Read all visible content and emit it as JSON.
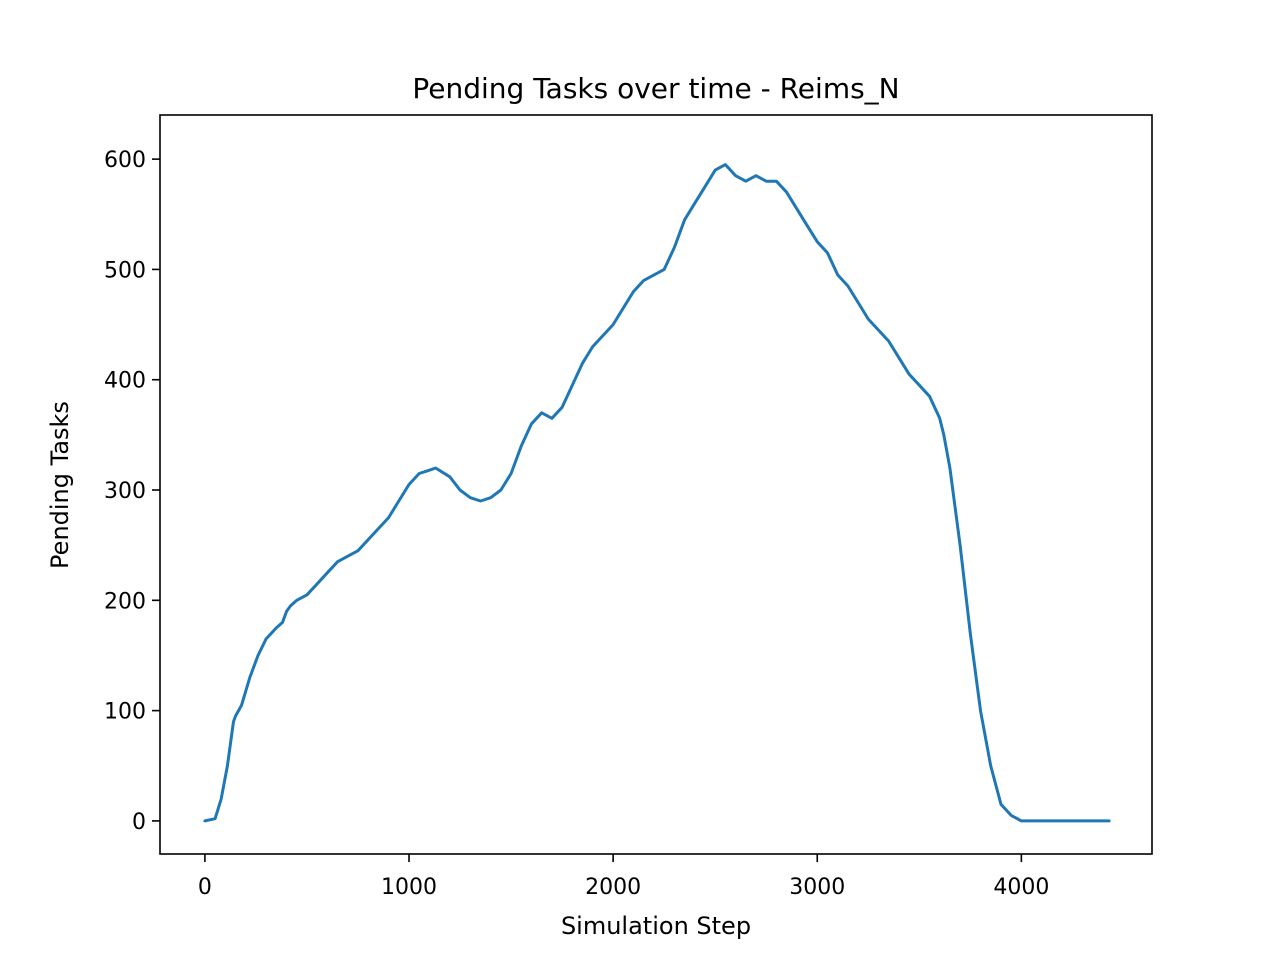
{
  "chart_data": {
    "type": "line",
    "title": "Pending Tasks over time - Reims_N",
    "xlabel": "Simulation Step",
    "ylabel": "Pending Tasks",
    "xlim": [
      -220,
      4640
    ],
    "ylim": [
      -30,
      640
    ],
    "xticks": [
      0,
      1000,
      2000,
      3000,
      4000
    ],
    "yticks": [
      0,
      100,
      200,
      300,
      400,
      500,
      600
    ],
    "grid": false,
    "line_color": "#1f77b4",
    "series": [
      {
        "x": [
          0,
          50,
          80,
          110,
          140,
          150,
          180,
          220,
          260,
          300,
          350,
          380,
          400,
          420,
          450,
          500,
          550,
          600,
          650,
          700,
          750,
          800,
          850,
          900,
          950,
          1000,
          1050,
          1100,
          1130,
          1200,
          1250,
          1300,
          1350,
          1400,
          1450,
          1500,
          1550,
          1600,
          1650,
          1700,
          1750,
          1800,
          1850,
          1900,
          1950,
          2000,
          2050,
          2100,
          2150,
          2200,
          2250,
          2300,
          2350,
          2400,
          2450,
          2500,
          2550,
          2600,
          2650,
          2700,
          2750,
          2800,
          2850,
          2900,
          2950,
          3000,
          3050,
          3100,
          3150,
          3200,
          3250,
          3300,
          3350,
          3400,
          3450,
          3500,
          3550,
          3600,
          3620,
          3650,
          3700,
          3750,
          3800,
          3850,
          3900,
          3950,
          4000,
          4050,
          4100,
          4200,
          4300,
          4430
        ],
        "y": [
          0,
          2,
          20,
          50,
          90,
          95,
          105,
          130,
          150,
          165,
          175,
          180,
          190,
          195,
          200,
          205,
          215,
          225,
          235,
          240,
          245,
          255,
          265,
          275,
          290,
          305,
          315,
          318,
          320,
          312,
          300,
          293,
          290,
          293,
          300,
          315,
          340,
          360,
          370,
          365,
          375,
          395,
          415,
          430,
          440,
          450,
          465,
          480,
          490,
          495,
          500,
          520,
          545,
          560,
          575,
          590,
          595,
          585,
          580,
          585,
          580,
          580,
          570,
          555,
          540,
          525,
          515,
          495,
          485,
          470,
          455,
          445,
          435,
          420,
          405,
          395,
          385,
          365,
          350,
          320,
          250,
          170,
          100,
          50,
          15,
          5,
          0,
          0,
          0,
          0,
          0,
          0
        ]
      }
    ]
  }
}
